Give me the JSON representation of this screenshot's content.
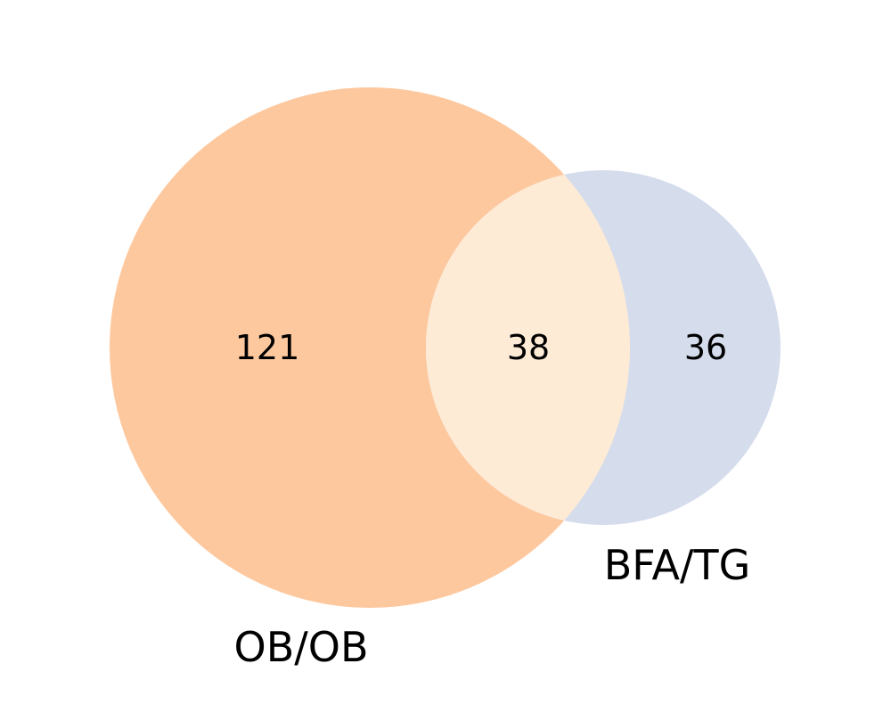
{
  "venn": {
    "sets": [
      {
        "name": "OB/OB",
        "size": 159,
        "color": "#fec89e"
      },
      {
        "name": "BFA/TG",
        "size": 74,
        "color": "#d5dcec"
      }
    ],
    "overlap_color": "#feebd6",
    "regions": {
      "ob_only": "121",
      "intersection": "38",
      "bfa_only": "36"
    }
  }
}
